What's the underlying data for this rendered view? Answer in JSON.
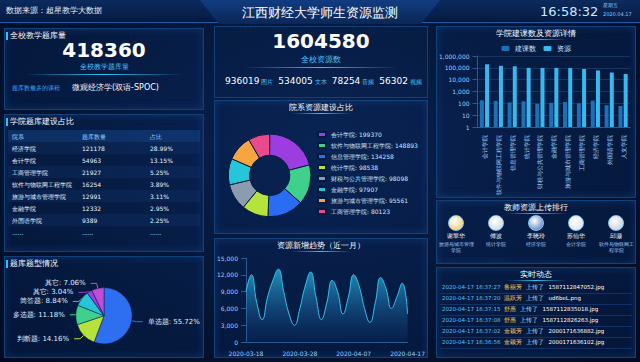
{
  "header": {
    "source": "数据来源：超星教学大数据",
    "title": "江西财经大学师生资源监测",
    "time": "16:58:32",
    "weekday": "星期五",
    "date": "2020.04.17"
  },
  "question_bank": {
    "title": "全校教学题库量",
    "total": 418360,
    "label": "全校教学题库量",
    "top_course_label": "题库数最多的课程",
    "top_course": "微观经济学(双语-SPOC)"
  },
  "resources": {
    "total": 1604580,
    "label": "全校资源数",
    "breakdown": [
      {
        "value": 936019,
        "label": "图片"
      },
      {
        "value": 534005,
        "label": "文本"
      },
      {
        "value": 78254,
        "label": "音频"
      },
      {
        "value": 56302,
        "label": "视频"
      }
    ]
  },
  "bank_table": {
    "title": "学院题库建设占比",
    "header": [
      "院系",
      "题库数量",
      "占比"
    ],
    "rows": [
      [
        "经济学院",
        121178,
        "28.99%"
      ],
      [
        "会计学院",
        54963,
        "13.15%"
      ],
      [
        "工商管理学院",
        21927,
        "5.25%"
      ],
      [
        "软件与物联网工程学院",
        16254,
        "3.89%"
      ],
      [
        "旅游与城市管理学院",
        12991,
        "3.11%"
      ],
      [
        "金融学院",
        12332,
        "2.95%"
      ],
      [
        "外国语学院",
        9389,
        "2.25%"
      ],
      [
        "......",
        "......",
        "......"
      ]
    ]
  },
  "teachers": {
    "title": "教师资源上传排行",
    "items": [
      {
        "name": "谢翠华",
        "college": "旅游与城市管理学院"
      },
      {
        "name": "傅波",
        "college": "统计学院"
      },
      {
        "name": "李晓玲",
        "college": "经济学院"
      },
      {
        "name": "苏仙华",
        "college": "会计学院"
      },
      {
        "name": "邱灏",
        "college": "软件与物联网工程学院"
      }
    ]
  },
  "live_feed": {
    "title": "实时动态",
    "items": [
      {
        "time": "2020-04-17 16:37:27",
        "user": "鲁丽芳",
        "action": "上传了",
        "file": "1587112847052.jpg"
      },
      {
        "time": "2020-04-17 16:37:20",
        "user": "温跃芳",
        "action": "上传了",
        "file": "ud6beL.png"
      },
      {
        "time": "2020-04-17 16:37:15",
        "user": "舒惠",
        "action": "上传了",
        "file": "1587112835018.jpg"
      },
      {
        "time": "2020-04-17 16:37:08",
        "user": "舒惠",
        "action": "上传了",
        "file": "1587112826263.jpg"
      },
      {
        "time": "2020-04-17 16:37:02",
        "user": "金颖芳",
        "action": "上传了",
        "file": "2000171636882.jpg"
      },
      {
        "time": "2020-04-17 16:36:56",
        "user": "金颖芳",
        "action": "上传了",
        "file": "2000171636102.jpg"
      }
    ]
  },
  "chart_data": [
    {
      "type": "bar",
      "title": "学院建课数及资源详情",
      "categories": [
        "会计学院",
        "软件与物联网工程学院",
        "信息管理学院",
        "统计学院",
        "财税与公共管理学院",
        "金融学院",
        "旅游与城市管理学院",
        "工商管理学院",
        "经济学院",
        "外国语学院",
        "人文学院"
      ],
      "series": [
        {
          "name": "建课数",
          "color": "#1f6fb5",
          "values": [
            180,
            160,
            120,
            150,
            90,
            110,
            130,
            100,
            170,
            70,
            60
          ]
        },
        {
          "name": "资源",
          "color": "#36b9f0",
          "values": [
            199370,
            148893,
            134258,
            98538,
            98098,
            97907,
            95561,
            80123,
            60000,
            40000,
            30000
          ]
        }
      ],
      "log": "y",
      "ylim": [
        1,
        1000000
      ],
      "yticks": [
        1,
        10,
        100,
        {
          "value": 1000,
          "label": "1,000"
        },
        {
          "value": 10000,
          "label": "10,000"
        },
        {
          "value": 100000,
          "label": "100,000"
        },
        {
          "value": 1000000,
          "label": "1,000,000"
        }
      ],
      "grid": true,
      "legend": "top"
    },
    {
      "type": "donut",
      "title": "院系资源建设占比",
      "categories": [
        "会计学院",
        "软件与物联网工程学院",
        "信息管理学院",
        "统计学院",
        "财税与公共管理学院",
        "金融学院",
        "旅游与城市管理学院",
        "工商管理学院"
      ],
      "values": [
        199370,
        148893,
        134258,
        98538,
        98098,
        97907,
        95561,
        80123
      ],
      "value_labels": [
        "会计学院: 199370",
        "软件与物联网工程学院: 148893",
        "信息管理学院: 134258",
        "统计学院: 98538",
        "财税与公共管理学院: 98098",
        "金融学院: 97907",
        "旅游与城市管理学院: 95561",
        "工商管理学院: 80123"
      ],
      "colors": [
        "#9b3de0",
        "#3fd18c",
        "#2a6df4",
        "#b6e23c",
        "#8c9bb0",
        "#26c6da",
        "#f7a541",
        "#e94b8a"
      ],
      "legend": "right"
    },
    {
      "type": "line",
      "title": "资源新增趋势（近一月）",
      "categories": [
        "2020-03-18",
        null,
        null,
        null,
        null,
        null,
        null,
        null,
        null,
        null,
        "2020-03-28",
        null,
        null,
        null,
        null,
        null,
        null,
        null,
        null,
        null,
        "2020-04-07",
        null,
        null,
        null,
        null,
        null,
        null,
        null,
        null,
        null,
        "2020-04-17"
      ],
      "values": [
        9000,
        12000,
        7000,
        4000,
        8000,
        11000,
        13000,
        9000,
        5000,
        3000,
        6000,
        10000,
        12500,
        8000,
        4000,
        7000,
        11000,
        9000,
        5000,
        8000,
        12000,
        10000,
        6000,
        3500,
        7000,
        11500,
        9500,
        6000,
        8000,
        10500,
        5000
      ],
      "color": "#2fc4f0",
      "ylim": [
        0,
        15000
      ],
      "yticks": [
        0,
        {
          "value": 3000,
          "label": "3,000"
        },
        {
          "value": 6000,
          "label": "6,000"
        },
        {
          "value": 9000,
          "label": "9,000"
        },
        {
          "value": 12000,
          "label": "12,000"
        },
        {
          "value": 15000,
          "label": "15,000"
        }
      ],
      "grid": false
    },
    {
      "type": "pie",
      "title": "题库题型情况",
      "categories": [
        "单选题",
        "判断题",
        "多选题",
        "简答题",
        "其它",
        "其它"
      ],
      "values": [
        55.72,
        14.16,
        11.18,
        8.84,
        3.04,
        7.06
      ],
      "value_labels": [
        "单选题: 55.72%",
        "判断题: 14.16%",
        "多选题: 11.18%",
        "简答题: 8.84%",
        "其它: 3.04%",
        "其它: 7.06%"
      ],
      "colors": [
        "#2e6ff2",
        "#b6e23c",
        "#3fd18c",
        "#26c6da",
        "#9b3de0",
        "#c04dd8"
      ],
      "data_labels": true
    }
  ]
}
